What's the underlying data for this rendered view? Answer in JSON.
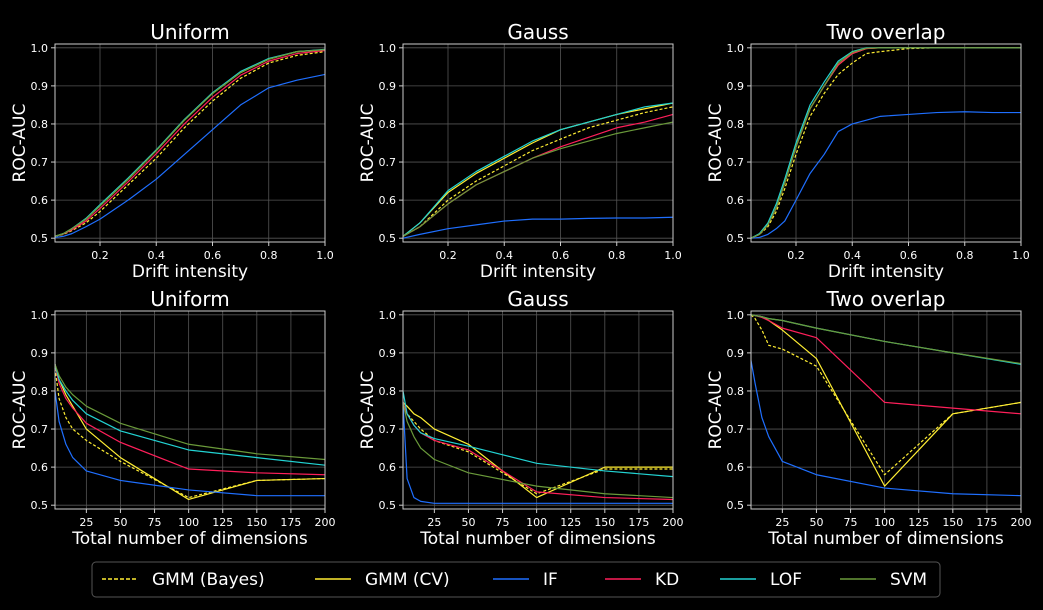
{
  "colors": {
    "background": "#000000",
    "grid": "#555555",
    "axes": "#cccccc",
    "GMM (Bayes)": "#ffee33",
    "GMM (CV)": "#ffee33",
    "IF": "#1f6fff",
    "KD": "#ff1f5a",
    "LOF": "#22d3d3",
    "SVM": "#6a9a3a"
  },
  "legend": {
    "placement": "bottom-center",
    "entries": [
      {
        "label": "GMM (Bayes)",
        "dash": true
      },
      {
        "label": "GMM (CV)",
        "dash": false
      },
      {
        "label": "IF",
        "dash": false
      },
      {
        "label": "KD",
        "dash": false
      },
      {
        "label": "LOF",
        "dash": false
      },
      {
        "label": "SVM",
        "dash": false
      }
    ]
  },
  "chart_data": [
    {
      "type": "line",
      "title": "Uniform",
      "xlabel": "Drift intensity",
      "ylabel": "ROC-AUC",
      "xlim": [
        0.04,
        1.0
      ],
      "ylim": [
        0.49,
        1.01
      ],
      "xticks": [
        "0.2",
        "0.4",
        "0.6",
        "0.8",
        "1.0"
      ],
      "xtick_values": [
        0.2,
        0.4,
        0.6,
        0.8,
        1.0
      ],
      "yticks": [
        "0.5",
        "0.6",
        "0.7",
        "0.8",
        "0.9",
        "1.0"
      ],
      "ytick_values": [
        0.5,
        0.6,
        0.7,
        0.8,
        0.9,
        1.0
      ],
      "grid": true,
      "x": [
        0.04,
        0.07,
        0.1,
        0.15,
        0.2,
        0.3,
        0.4,
        0.5,
        0.6,
        0.7,
        0.8,
        0.9,
        1.0
      ],
      "series": [
        {
          "name": "GMM (Bayes)",
          "values": [
            0.505,
            0.51,
            0.52,
            0.54,
            0.57,
            0.64,
            0.71,
            0.79,
            0.86,
            0.92,
            0.96,
            0.98,
            0.99
          ]
        },
        {
          "name": "GMM (CV)",
          "values": [
            0.505,
            0.512,
            0.525,
            0.55,
            0.585,
            0.655,
            0.73,
            0.81,
            0.88,
            0.935,
            0.97,
            0.99,
            0.995
          ]
        },
        {
          "name": "IF",
          "values": [
            0.502,
            0.505,
            0.512,
            0.53,
            0.55,
            0.6,
            0.655,
            0.72,
            0.785,
            0.85,
            0.895,
            0.915,
            0.93
          ]
        },
        {
          "name": "KD",
          "values": [
            0.505,
            0.511,
            0.522,
            0.545,
            0.578,
            0.648,
            0.722,
            0.8,
            0.87,
            0.928,
            0.965,
            0.985,
            0.993
          ]
        },
        {
          "name": "LOF",
          "values": [
            0.505,
            0.512,
            0.525,
            0.552,
            0.588,
            0.658,
            0.732,
            0.812,
            0.882,
            0.938,
            0.972,
            0.99,
            0.996
          ]
        },
        {
          "name": "SVM",
          "values": [
            0.505,
            0.512,
            0.525,
            0.55,
            0.585,
            0.655,
            0.73,
            0.81,
            0.88,
            0.935,
            0.97,
            0.99,
            0.995
          ]
        }
      ]
    },
    {
      "type": "line",
      "title": "Gauss",
      "xlabel": "Drift intensity",
      "ylabel": "ROC-AUC",
      "xlim": [
        0.04,
        1.0
      ],
      "ylim": [
        0.49,
        1.01
      ],
      "xticks": [
        "0.2",
        "0.4",
        "0.6",
        "0.8",
        "1.0"
      ],
      "xtick_values": [
        0.2,
        0.4,
        0.6,
        0.8,
        1.0
      ],
      "yticks": [
        "0.5",
        "0.6",
        "0.7",
        "0.8",
        "0.9",
        "1.0"
      ],
      "ytick_values": [
        0.5,
        0.6,
        0.7,
        0.8,
        0.9,
        1.0
      ],
      "grid": true,
      "x": [
        0.04,
        0.1,
        0.2,
        0.3,
        0.4,
        0.5,
        0.6,
        0.7,
        0.8,
        0.9,
        1.0
      ],
      "series": [
        {
          "name": "GMM (Bayes)",
          "values": [
            0.505,
            0.53,
            0.6,
            0.65,
            0.69,
            0.73,
            0.76,
            0.79,
            0.81,
            0.83,
            0.845
          ]
        },
        {
          "name": "GMM (CV)",
          "values": [
            0.505,
            0.54,
            0.62,
            0.67,
            0.71,
            0.75,
            0.785,
            0.805,
            0.825,
            0.84,
            0.855
          ]
        },
        {
          "name": "IF",
          "values": [
            0.5,
            0.51,
            0.525,
            0.535,
            0.545,
            0.55,
            0.55,
            0.552,
            0.553,
            0.553,
            0.555
          ]
        },
        {
          "name": "KD",
          "values": [
            0.505,
            0.53,
            0.59,
            0.64,
            0.675,
            0.71,
            0.74,
            0.765,
            0.79,
            0.805,
            0.825
          ]
        },
        {
          "name": "LOF",
          "values": [
            0.505,
            0.54,
            0.625,
            0.675,
            0.715,
            0.755,
            0.785,
            0.805,
            0.825,
            0.845,
            0.855
          ]
        },
        {
          "name": "SVM",
          "values": [
            0.505,
            0.53,
            0.59,
            0.64,
            0.675,
            0.71,
            0.735,
            0.755,
            0.775,
            0.79,
            0.805
          ]
        }
      ]
    },
    {
      "type": "line",
      "title": "Two overlap",
      "xlabel": "Drift intensity",
      "ylabel": "ROC-AUC",
      "xlim": [
        0.04,
        1.0
      ],
      "ylim": [
        0.49,
        1.01
      ],
      "xticks": [
        "0.2",
        "0.4",
        "0.6",
        "0.8",
        "1.0"
      ],
      "xtick_values": [
        0.2,
        0.4,
        0.6,
        0.8,
        1.0
      ],
      "yticks": [
        "0.5",
        "0.6",
        "0.7",
        "0.8",
        "0.9",
        "1.0"
      ],
      "ytick_values": [
        0.5,
        0.6,
        0.7,
        0.8,
        0.9,
        1.0
      ],
      "grid": true,
      "x": [
        0.04,
        0.07,
        0.1,
        0.13,
        0.16,
        0.2,
        0.25,
        0.3,
        0.35,
        0.4,
        0.45,
        0.5,
        0.6,
        0.7,
        0.8,
        0.9,
        1.0
      ],
      "series": [
        {
          "name": "GMM (Bayes)",
          "values": [
            0.5,
            0.51,
            0.53,
            0.57,
            0.63,
            0.72,
            0.82,
            0.88,
            0.93,
            0.96,
            0.985,
            0.99,
            0.998,
            1.0,
            1.0,
            1.0,
            1.0
          ]
        },
        {
          "name": "GMM (CV)",
          "values": [
            0.5,
            0.51,
            0.535,
            0.58,
            0.645,
            0.74,
            0.84,
            0.9,
            0.955,
            0.985,
            0.998,
            1.0,
            1.0,
            1.0,
            1.0,
            1.0,
            1.0
          ]
        },
        {
          "name": "IF",
          "values": [
            0.5,
            0.502,
            0.51,
            0.525,
            0.545,
            0.6,
            0.67,
            0.72,
            0.78,
            0.8,
            0.81,
            0.82,
            0.825,
            0.83,
            0.832,
            0.83,
            0.83
          ]
        },
        {
          "name": "KD",
          "values": [
            0.5,
            0.51,
            0.535,
            0.58,
            0.645,
            0.74,
            0.84,
            0.9,
            0.955,
            0.985,
            0.998,
            1.0,
            1.0,
            1.0,
            1.0,
            1.0,
            1.0
          ]
        },
        {
          "name": "LOF",
          "values": [
            0.5,
            0.512,
            0.54,
            0.59,
            0.655,
            0.75,
            0.85,
            0.91,
            0.965,
            0.99,
            1.0,
            1.0,
            1.0,
            1.0,
            1.0,
            1.0,
            1.0
          ]
        },
        {
          "name": "SVM",
          "values": [
            0.5,
            0.51,
            0.535,
            0.58,
            0.645,
            0.74,
            0.84,
            0.9,
            0.96,
            0.988,
            0.999,
            1.0,
            1.0,
            1.0,
            1.0,
            1.0,
            1.0
          ]
        }
      ]
    },
    {
      "type": "line",
      "title": "Uniform",
      "xlabel": "Total number of dimensions",
      "ylabel": "ROC-AUC",
      "xlim": [
        2,
        200
      ],
      "ylim": [
        0.49,
        1.01
      ],
      "xticks": [
        "25",
        "50",
        "75",
        "100",
        "125",
        "150",
        "175",
        "200"
      ],
      "xtick_values": [
        25,
        50,
        75,
        100,
        125,
        150,
        175,
        200
      ],
      "yticks": [
        "0.5",
        "0.6",
        "0.7",
        "0.8",
        "0.9",
        "1.0"
      ],
      "ytick_values": [
        0.5,
        0.6,
        0.7,
        0.8,
        0.9,
        1.0
      ],
      "grid": true,
      "x": [
        2,
        5,
        10,
        15,
        25,
        50,
        100,
        150,
        200
      ],
      "series": [
        {
          "name": "GMM (Bayes)",
          "values": [
            0.86,
            0.78,
            0.73,
            0.7,
            0.67,
            0.615,
            0.52,
            0.565,
            0.57
          ]
        },
        {
          "name": "GMM (CV)",
          "values": [
            0.87,
            0.83,
            0.79,
            0.76,
            0.7,
            0.625,
            0.515,
            0.565,
            0.57
          ]
        },
        {
          "name": "IF",
          "values": [
            0.8,
            0.72,
            0.66,
            0.625,
            0.59,
            0.565,
            0.54,
            0.525,
            0.525
          ]
        },
        {
          "name": "KD",
          "values": [
            0.87,
            0.82,
            0.78,
            0.755,
            0.715,
            0.665,
            0.595,
            0.585,
            0.58
          ]
        },
        {
          "name": "LOF",
          "values": [
            0.87,
            0.83,
            0.8,
            0.775,
            0.74,
            0.695,
            0.645,
            0.625,
            0.605
          ]
        },
        {
          "name": "SVM",
          "values": [
            0.87,
            0.84,
            0.81,
            0.79,
            0.76,
            0.715,
            0.66,
            0.635,
            0.62
          ]
        }
      ]
    },
    {
      "type": "line",
      "title": "Gauss",
      "xlabel": "Total number of dimensions",
      "ylabel": "ROC-AUC",
      "xlim": [
        2,
        200
      ],
      "ylim": [
        0.49,
        1.01
      ],
      "xticks": [
        "25",
        "50",
        "75",
        "100",
        "125",
        "150",
        "175",
        "200"
      ],
      "xtick_values": [
        25,
        50,
        75,
        100,
        125,
        150,
        175,
        200
      ],
      "yticks": [
        "0.5",
        "0.6",
        "0.7",
        "0.8",
        "0.9",
        "1.0"
      ],
      "ytick_values": [
        0.5,
        0.6,
        0.7,
        0.8,
        0.9,
        1.0
      ],
      "grid": true,
      "x": [
        2,
        5,
        10,
        15,
        25,
        50,
        100,
        150,
        200
      ],
      "series": [
        {
          "name": "GMM (Bayes)",
          "values": [
            0.76,
            0.74,
            0.72,
            0.7,
            0.67,
            0.64,
            0.53,
            0.595,
            0.595
          ]
        },
        {
          "name": "GMM (CV)",
          "values": [
            0.77,
            0.76,
            0.74,
            0.73,
            0.7,
            0.66,
            0.52,
            0.6,
            0.6
          ]
        },
        {
          "name": "IF",
          "values": [
            0.77,
            0.57,
            0.52,
            0.51,
            0.505,
            0.505,
            0.505,
            0.505,
            0.505
          ]
        },
        {
          "name": "KD",
          "values": [
            0.77,
            0.74,
            0.71,
            0.69,
            0.67,
            0.645,
            0.535,
            0.52,
            0.515
          ]
        },
        {
          "name": "LOF",
          "values": [
            0.8,
            0.74,
            0.71,
            0.69,
            0.675,
            0.655,
            0.61,
            0.59,
            0.575
          ]
        },
        {
          "name": "SVM",
          "values": [
            0.77,
            0.72,
            0.68,
            0.65,
            0.62,
            0.585,
            0.55,
            0.53,
            0.52
          ]
        }
      ]
    },
    {
      "type": "line",
      "title": "Two overlap",
      "xlabel": "Total number of dimensions",
      "ylabel": "ROC-AUC",
      "xlim": [
        2,
        200
      ],
      "ylim": [
        0.49,
        1.01
      ],
      "xticks": [
        "25",
        "50",
        "75",
        "100",
        "125",
        "150",
        "175",
        "200"
      ],
      "xtick_values": [
        25,
        50,
        75,
        100,
        125,
        150,
        175,
        200
      ],
      "yticks": [
        "0.5",
        "0.6",
        "0.7",
        "0.8",
        "0.9",
        "1.0"
      ],
      "ytick_values": [
        0.5,
        0.6,
        0.7,
        0.8,
        0.9,
        1.0
      ],
      "grid": true,
      "x": [
        2,
        5,
        10,
        15,
        25,
        50,
        100,
        150,
        200
      ],
      "series": [
        {
          "name": "GMM (Bayes)",
          "values": [
            1.0,
            0.99,
            0.96,
            0.92,
            0.91,
            0.865,
            0.58,
            0.74,
            0.77
          ]
        },
        {
          "name": "GMM (CV)",
          "values": [
            1.0,
            0.998,
            0.995,
            0.985,
            0.96,
            0.885,
            0.55,
            0.74,
            0.77
          ]
        },
        {
          "name": "IF",
          "values": [
            0.88,
            0.82,
            0.73,
            0.68,
            0.615,
            0.58,
            0.545,
            0.53,
            0.525
          ]
        },
        {
          "name": "KD",
          "values": [
            1.0,
            0.998,
            0.993,
            0.985,
            0.965,
            0.94,
            0.77,
            0.755,
            0.74
          ]
        },
        {
          "name": "LOF",
          "values": [
            1.0,
            0.998,
            0.995,
            0.99,
            0.985,
            0.965,
            0.93,
            0.9,
            0.87
          ]
        },
        {
          "name": "SVM",
          "values": [
            1.0,
            0.998,
            0.995,
            0.99,
            0.985,
            0.965,
            0.93,
            0.9,
            0.872
          ]
        }
      ]
    }
  ]
}
